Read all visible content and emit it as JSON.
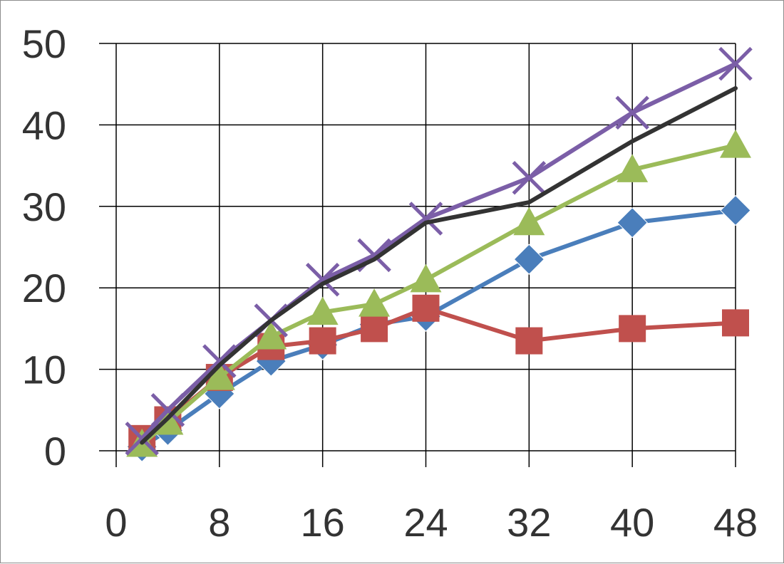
{
  "chart_data": {
    "type": "line",
    "title": "",
    "xlabel": "",
    "ylabel": "",
    "xlim": [
      0,
      48
    ],
    "ylim": [
      0,
      50
    ],
    "x_ticks": [
      0,
      8,
      16,
      24,
      32,
      40,
      48
    ],
    "y_ticks": [
      0,
      10,
      20,
      30,
      40,
      50
    ],
    "grid": true,
    "legend": "none",
    "series": [
      {
        "color": "#4a7ebb",
        "marker": "diamond",
        "x": [
          2,
          4,
          8,
          12,
          16,
          20,
          24,
          32,
          40,
          48
        ],
        "y": [
          0.5,
          2.5,
          7,
          11,
          13,
          15.5,
          16.5,
          23.5,
          28,
          29.5
        ]
      },
      {
        "color": "#c0504d",
        "marker": "square",
        "x": [
          2,
          4,
          8,
          12,
          16,
          20,
          24,
          32,
          40,
          48
        ],
        "y": [
          1.5,
          3.8,
          9,
          12.8,
          13.5,
          15,
          17.5,
          13.5,
          15,
          15.7
        ]
      },
      {
        "color": "#9bbb59",
        "marker": "triangle",
        "x": [
          2,
          4,
          8,
          12,
          16,
          20,
          24,
          32,
          40,
          48
        ],
        "y": [
          0.8,
          3.5,
          9,
          14,
          17,
          18,
          21,
          28,
          34.5,
          37.5
        ]
      },
      {
        "color": "#7b5ea7",
        "marker": "x",
        "x": [
          2,
          4,
          8,
          12,
          16,
          20,
          24,
          32,
          40,
          48
        ],
        "y": [
          1.5,
          5,
          11,
          16,
          21,
          24,
          28.5,
          33.5,
          41.5,
          47.5
        ]
      },
      {
        "color": "#333333",
        "marker": "none",
        "x": [
          2,
          4,
          8,
          12,
          16,
          20,
          24,
          32,
          40,
          48
        ],
        "y": [
          1,
          4,
          10.5,
          16,
          20.5,
          23.5,
          28,
          30.5,
          38,
          44.5
        ]
      }
    ]
  }
}
